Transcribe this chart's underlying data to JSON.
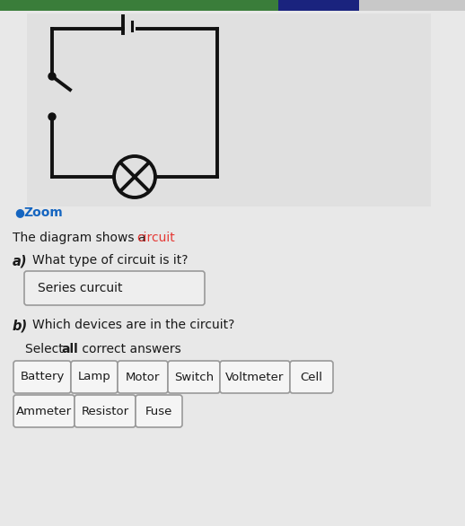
{
  "bg_color": "#c8c8c8",
  "content_bg": "#f0f0f0",
  "top_bar_colors": [
    "#2d6b2d",
    "#2d6b2d",
    "#2d6b2d",
    "#1a237e"
  ],
  "zoom_label_color": "#1565C0",
  "circuit_word_color": "#e53935",
  "answer_a": "Series curcuit",
  "row1_buttons": [
    "Battery",
    "Lamp",
    "Motor",
    "Switch",
    "Voltmeter",
    "Cell"
  ],
  "row2_buttons": [
    "Ammeter",
    "Resistor",
    "Fuse"
  ],
  "button_bg": "#f5f5f5",
  "button_border": "#999999",
  "text_color": "#1a1a1a",
  "line_color": "#111111"
}
